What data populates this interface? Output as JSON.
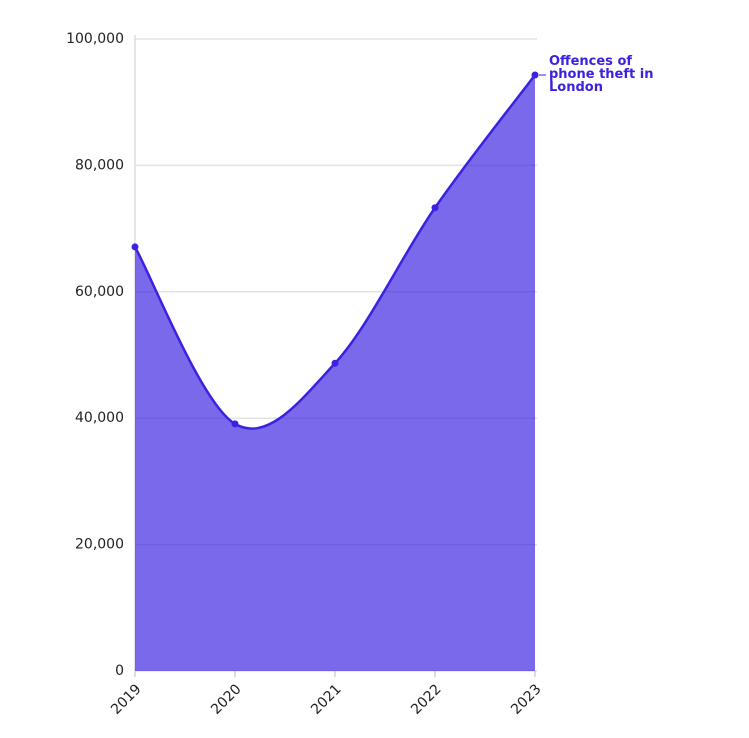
{
  "chart_data": {
    "type": "area",
    "categories": [
      "2019",
      "2020",
      "2021",
      "2022",
      "2023"
    ],
    "series": [
      {
        "name": "Offences of phone theft in London",
        "color": "#3b22e0",
        "values": [
          67100,
          39100,
          48700,
          73300,
          94300
        ]
      }
    ],
    "ylim": [
      0,
      100000
    ],
    "yticks": [
      0,
      {
        "value": 20000,
        "label": "20,000"
      },
      {
        "value": 40000,
        "label": "40,000"
      },
      {
        "value": 60000,
        "label": "60,000"
      },
      {
        "value": 80000,
        "label": "80,000"
      },
      {
        "value": 100000,
        "label": "100,000"
      }
    ],
    "grid": true
  }
}
